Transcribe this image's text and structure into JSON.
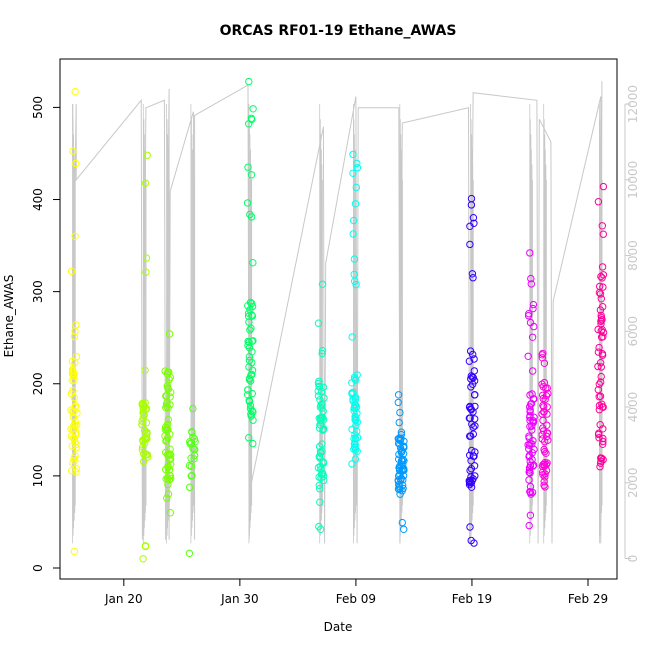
{
  "chart_data": {
    "type": "scatter",
    "title": "ORCAS RF01-19 Ethane_AWAS",
    "xlabel": "Date",
    "ylabel": "Ethane_AWAS",
    "x_ticks": [
      {
        "label": "Jan 20",
        "day": 20
      },
      {
        "label": "Jan 30",
        "day": 30
      },
      {
        "label": "Feb 09",
        "day": 40
      },
      {
        "label": "Feb 19",
        "day": 50
      },
      {
        "label": "Feb 29",
        "day": 60
      }
    ],
    "xlim_days": [
      14.5,
      62.5
    ],
    "ylim": [
      0,
      550
    ],
    "y_ticks": [
      0,
      100,
      200,
      300,
      400,
      500
    ],
    "y2_label": "",
    "y2lim": [
      0,
      13000
    ],
    "y2_ticks": [
      0,
      2000,
      4000,
      6000,
      8000,
      10000,
      12000
    ],
    "grid": false,
    "legend": "none",
    "altitude_color": "#c8c8c8",
    "flights": [
      {
        "day": 15.7,
        "color": "#ffff00",
        "ymin": 18,
        "ymax": 517,
        "n": 52,
        "core": [
          105,
          230
        ]
      },
      {
        "day": 21.8,
        "color": "#a8ff00",
        "ymin": 10,
        "ymax": 448,
        "n": 50,
        "core": [
          115,
          180
        ]
      },
      {
        "day": 23.8,
        "color": "#7aff00",
        "ymin": 60,
        "ymax": 254,
        "n": 55,
        "core": [
          90,
          215
        ]
      },
      {
        "day": 25.9,
        "color": "#58ff1a",
        "ymin": 16,
        "ymax": 173,
        "n": 22,
        "core": [
          100,
          150
        ]
      },
      {
        "day": 30.9,
        "color": "#00ff66",
        "ymin": 135,
        "ymax": 528,
        "n": 55,
        "core": [
          140,
          290
        ]
      },
      {
        "day": 37.0,
        "color": "#00ffbb",
        "ymin": 42,
        "ymax": 308,
        "n": 55,
        "core": [
          95,
          210
        ]
      },
      {
        "day": 39.9,
        "color": "#00ffee",
        "ymin": 113,
        "ymax": 449,
        "n": 55,
        "core": [
          125,
          210
        ]
      },
      {
        "day": 43.9,
        "color": "#0099ff",
        "ymin": 42,
        "ymax": 188,
        "n": 60,
        "core": [
          80,
          150
        ]
      },
      {
        "day": 50.0,
        "color": "#3300ff",
        "ymin": 27,
        "ymax": 401,
        "n": 60,
        "core": [
          90,
          240
        ]
      },
      {
        "day": 55.1,
        "color": "#ee00ff",
        "ymin": 46,
        "ymax": 342,
        "n": 60,
        "core": [
          80,
          200
        ]
      },
      {
        "day": 56.3,
        "color": "#ff00dd",
        "ymin": 88,
        "ymax": 233,
        "n": 50,
        "core": [
          100,
          200
        ]
      },
      {
        "day": 61.1,
        "color": "#ff0099",
        "ymin": 110,
        "ymax": 414,
        "n": 60,
        "core": [
          110,
          330
        ]
      }
    ],
    "altitude_track": [
      {
        "day": 15.6,
        "alt": 12000
      },
      {
        "day": 15.6,
        "alt": 1000
      },
      {
        "day": 15.7,
        "alt": 8000
      },
      {
        "day": 15.9,
        "alt": 12000
      },
      {
        "day": 15.9,
        "alt": 10000
      },
      {
        "day": 21.5,
        "alt": 12100
      },
      {
        "day": 21.6,
        "alt": 500
      },
      {
        "day": 21.9,
        "alt": 11900
      },
      {
        "day": 23.5,
        "alt": 12100
      },
      {
        "day": 23.6,
        "alt": 500
      },
      {
        "day": 23.8,
        "alt": 9000
      },
      {
        "day": 23.9,
        "alt": 12400
      },
      {
        "day": 23.9,
        "alt": 500
      },
      {
        "day": 24.0,
        "alt": 9700
      },
      {
        "day": 26.0,
        "alt": 11800
      },
      {
        "day": 26.1,
        "alt": 500
      },
      {
        "day": 26.1,
        "alt": 11700
      },
      {
        "day": 30.7,
        "alt": 12500
      },
      {
        "day": 30.8,
        "alt": 500
      },
      {
        "day": 31.0,
        "alt": 2000
      },
      {
        "day": 37.2,
        "alt": 11400
      },
      {
        "day": 37.3,
        "alt": 400
      },
      {
        "day": 37.4,
        "alt": 7800
      },
      {
        "day": 40.0,
        "alt": 12200
      },
      {
        "day": 40.1,
        "alt": 400
      },
      {
        "day": 40.2,
        "alt": 11900
      },
      {
        "day": 43.7,
        "alt": 11900
      },
      {
        "day": 43.8,
        "alt": 400
      },
      {
        "day": 44.0,
        "alt": 11500
      },
      {
        "day": 49.7,
        "alt": 11900
      },
      {
        "day": 49.8,
        "alt": 400
      },
      {
        "day": 50.1,
        "alt": 12300
      },
      {
        "day": 55.6,
        "alt": 12100
      },
      {
        "day": 55.7,
        "alt": 400
      },
      {
        "day": 55.8,
        "alt": 11600
      },
      {
        "day": 56.8,
        "alt": 11000
      },
      {
        "day": 56.9,
        "alt": 400
      },
      {
        "day": 57.0,
        "alt": 6800
      },
      {
        "day": 61.1,
        "alt": 12200
      },
      {
        "day": 61.1,
        "alt": 400
      },
      {
        "day": 61.2,
        "alt": 12600
      }
    ]
  }
}
